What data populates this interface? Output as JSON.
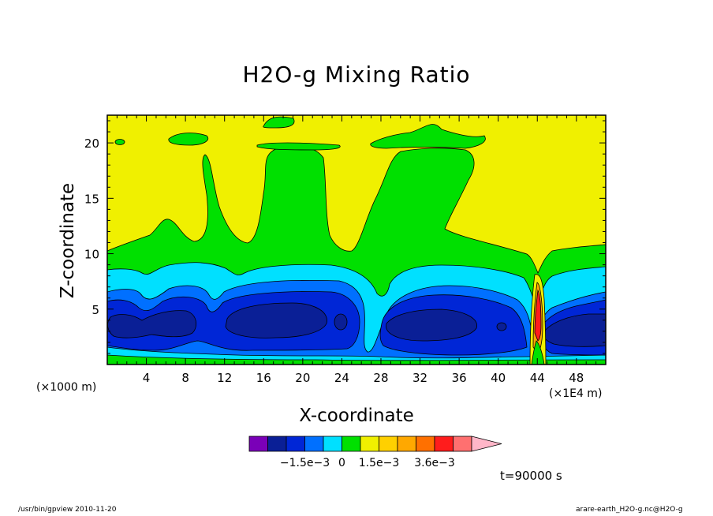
{
  "chart_data": {
    "type": "heatmap",
    "title": "H2O-g Mixing Ratio",
    "xlabel": "X-coordinate",
    "ylabel": "Z-coordinate",
    "x_units": "(×1000 m)",
    "x_units_alt": "(×1E4 m)",
    "xlim": [
      0,
      51
    ],
    "ylim": [
      0,
      22.5
    ],
    "x_ticks": [
      "4",
      "8",
      "12",
      "16",
      "20",
      "24",
      "28",
      "32",
      "36",
      "40",
      "44",
      "48"
    ],
    "y_ticks": [
      "5",
      "10",
      "15",
      "20"
    ],
    "colorbar": {
      "colors": [
        "#7a00b8",
        "#0a1f96",
        "#0026d6",
        "#0070ff",
        "#00e0ff",
        "#00e000",
        "#f0f000",
        "#ffd000",
        "#ffa800",
        "#ff7000",
        "#ff1c1c",
        "#ff7070"
      ],
      "extend_color": "#ffb6c8",
      "labels": [
        "−1.5e−3",
        "0",
        "1.5e−3",
        "3.6e−3"
      ]
    },
    "time_label": "t=90000 s"
  },
  "footer": {
    "left": "/usr/bin/gpview   2010-11-20",
    "right": "arare-earth_H2O-g.nc@H2O-g"
  }
}
